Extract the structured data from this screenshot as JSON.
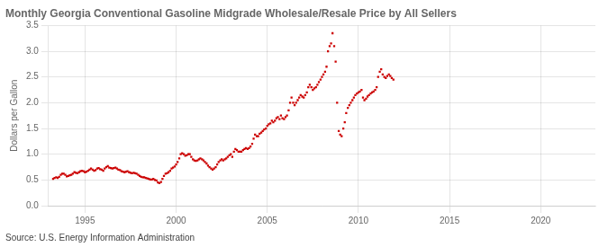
{
  "chart_data": {
    "type": "scatter",
    "title": "Monthly Georgia Conventional Gasoline Midgrade Wholesale/Resale Price by All Sellers",
    "ylabel": "Dollars per Gallon",
    "annotation": "Source: U.S. Energy Information Administration",
    "color": "#cc0000",
    "marker": "square",
    "grid": true,
    "xlim": [
      1993.0,
      2023.0
    ],
    "ylim": [
      0.0,
      3.5
    ],
    "xticks": [
      1995,
      2000,
      2005,
      2010,
      2015,
      2020
    ],
    "yticks": [
      {
        "value": 0.0,
        "label": "0.0"
      },
      0.5,
      {
        "value": 1.0,
        "label": "1.0"
      },
      1.5,
      {
        "value": 2.0,
        "label": "2.0"
      },
      2.5,
      {
        "value": 3.0,
        "label": "3.0"
      },
      3.5
    ],
    "x": [
      1993.25,
      1993.33,
      1993.42,
      1993.5,
      1993.58,
      1993.67,
      1993.75,
      1993.83,
      1993.92,
      1994.0,
      1994.08,
      1994.17,
      1994.25,
      1994.33,
      1994.42,
      1994.5,
      1994.58,
      1994.67,
      1994.75,
      1994.83,
      1994.92,
      1995.0,
      1995.08,
      1995.17,
      1995.25,
      1995.33,
      1995.42,
      1995.5,
      1995.58,
      1995.67,
      1995.75,
      1995.83,
      1995.92,
      1996.0,
      1996.08,
      1996.17,
      1996.25,
      1996.33,
      1996.42,
      1996.5,
      1996.58,
      1996.67,
      1996.75,
      1996.83,
      1996.92,
      1997.0,
      1997.08,
      1997.17,
      1997.25,
      1997.33,
      1997.42,
      1997.5,
      1997.58,
      1997.67,
      1997.75,
      1997.83,
      1997.92,
      1998.0,
      1998.08,
      1998.17,
      1998.25,
      1998.33,
      1998.42,
      1998.5,
      1998.58,
      1998.67,
      1998.75,
      1998.83,
      1998.92,
      1999.0,
      1999.08,
      1999.17,
      1999.25,
      1999.33,
      1999.42,
      1999.5,
      1999.58,
      1999.67,
      1999.75,
      1999.83,
      1999.92,
      2000.0,
      2000.08,
      2000.17,
      2000.25,
      2000.33,
      2000.42,
      2000.5,
      2000.58,
      2000.67,
      2000.75,
      2000.83,
      2000.92,
      2001.0,
      2001.08,
      2001.17,
      2001.25,
      2001.33,
      2001.42,
      2001.5,
      2001.58,
      2001.67,
      2001.75,
      2001.83,
      2001.92,
      2002.0,
      2002.08,
      2002.17,
      2002.25,
      2002.33,
      2002.42,
      2002.5,
      2002.58,
      2002.67,
      2002.75,
      2002.83,
      2002.92,
      2003.0,
      2003.08,
      2003.17,
      2003.25,
      2003.33,
      2003.42,
      2003.5,
      2003.58,
      2003.67,
      2003.75,
      2003.83,
      2003.92,
      2004.0,
      2004.08,
      2004.17,
      2004.25,
      2004.33,
      2004.42,
      2004.5,
      2004.58,
      2004.67,
      2004.75,
      2004.83,
      2004.92,
      2005.0,
      2005.08,
      2005.17,
      2005.25,
      2005.33,
      2005.42,
      2005.5,
      2005.58,
      2005.67,
      2005.75,
      2005.83,
      2005.92,
      2006.0,
      2006.08,
      2006.17,
      2006.25,
      2006.33,
      2006.42,
      2006.5,
      2006.58,
      2006.67,
      2006.75,
      2006.83,
      2006.92,
      2007.0,
      2007.08,
      2007.17,
      2007.25,
      2007.33,
      2007.42,
      2007.5,
      2007.58,
      2007.67,
      2007.75,
      2007.83,
      2007.92,
      2008.0,
      2008.08,
      2008.17,
      2008.25,
      2008.33,
      2008.42,
      2008.5,
      2008.58,
      2008.67,
      2008.75,
      2008.83,
      2008.92,
      2009.0,
      2009.08,
      2009.17,
      2009.25,
      2009.33,
      2009.42,
      2009.5,
      2009.58,
      2009.67,
      2009.75,
      2009.83,
      2009.92,
      2010.0,
      2010.08,
      2010.17,
      2010.25,
      2010.33,
      2010.42,
      2010.5,
      2010.58,
      2010.67,
      2010.75,
      2010.83,
      2010.92,
      2011.0,
      2011.08,
      2011.17,
      2011.25,
      2011.33,
      2011.42,
      2011.5,
      2011.58,
      2011.67,
      2011.75,
      2011.83,
      2011.92
    ],
    "values": [
      0.52,
      0.54,
      0.55,
      0.54,
      0.56,
      0.6,
      0.62,
      0.62,
      0.6,
      0.57,
      0.58,
      0.59,
      0.6,
      0.62,
      0.65,
      0.64,
      0.63,
      0.65,
      0.67,
      0.68,
      0.67,
      0.65,
      0.66,
      0.68,
      0.7,
      0.72,
      0.7,
      0.68,
      0.69,
      0.72,
      0.73,
      0.71,
      0.7,
      0.68,
      0.72,
      0.75,
      0.77,
      0.74,
      0.73,
      0.72,
      0.73,
      0.74,
      0.72,
      0.7,
      0.69,
      0.67,
      0.66,
      0.65,
      0.66,
      0.67,
      0.65,
      0.64,
      0.63,
      0.64,
      0.63,
      0.62,
      0.6,
      0.58,
      0.56,
      0.55,
      0.55,
      0.54,
      0.53,
      0.52,
      0.51,
      0.51,
      0.52,
      0.5,
      0.49,
      0.45,
      0.44,
      0.46,
      0.52,
      0.58,
      0.62,
      0.63,
      0.65,
      0.68,
      0.72,
      0.74,
      0.76,
      0.8,
      0.85,
      0.92,
      1.0,
      1.02,
      1.0,
      0.97,
      0.98,
      1.0,
      1.0,
      0.95,
      0.9,
      0.88,
      0.87,
      0.88,
      0.9,
      0.92,
      0.9,
      0.88,
      0.85,
      0.82,
      0.78,
      0.75,
      0.72,
      0.7,
      0.72,
      0.75,
      0.8,
      0.85,
      0.88,
      0.9,
      0.88,
      0.9,
      0.92,
      0.95,
      0.98,
      1.0,
      0.95,
      1.05,
      1.1,
      1.08,
      1.05,
      1.05,
      1.05,
      1.08,
      1.1,
      1.12,
      1.1,
      1.12,
      1.15,
      1.2,
      1.3,
      1.38,
      1.35,
      1.35,
      1.4,
      1.42,
      1.45,
      1.48,
      1.5,
      1.55,
      1.58,
      1.6,
      1.65,
      1.62,
      1.65,
      1.7,
      1.72,
      1.68,
      1.75,
      1.7,
      1.68,
      1.72,
      1.75,
      1.85,
      2.0,
      2.1,
      2.0,
      1.95,
      2.0,
      2.05,
      2.1,
      2.15,
      2.12,
      2.1,
      2.15,
      2.2,
      2.3,
      2.35,
      2.3,
      2.25,
      2.28,
      2.3,
      2.35,
      2.4,
      2.45,
      2.5,
      2.55,
      2.6,
      2.7,
      3.0,
      3.1,
      3.15,
      3.35,
      3.1,
      2.8,
      2.0,
      1.45,
      1.38,
      1.35,
      1.5,
      1.62,
      1.8,
      1.9,
      1.95,
      2.0,
      2.05,
      2.1,
      2.15,
      2.18,
      2.2,
      2.22,
      2.25,
      2.1,
      2.05,
      2.08,
      2.12,
      2.15,
      2.18,
      2.2,
      2.22,
      2.25,
      2.3,
      2.5,
      2.6,
      2.65,
      2.55,
      2.5,
      2.48,
      2.52,
      2.55,
      2.52,
      2.48,
      2.45
    ]
  }
}
